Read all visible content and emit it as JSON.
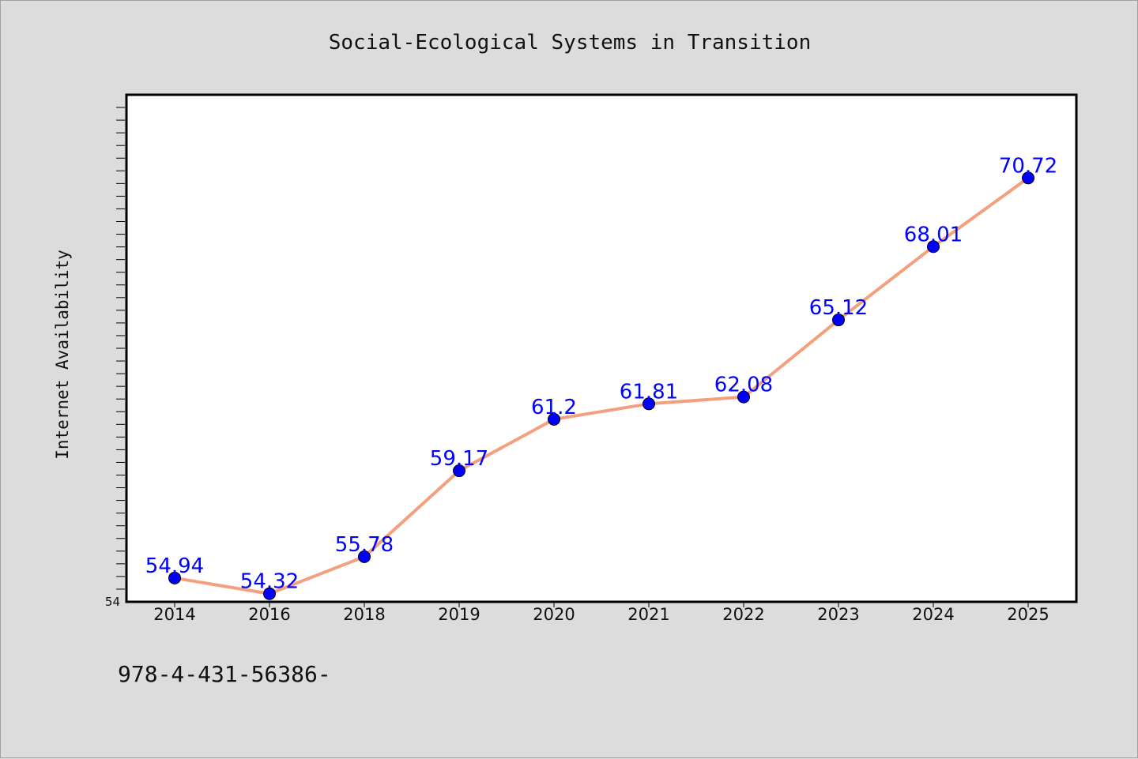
{
  "chart_data": {
    "type": "line",
    "title": "Social-Ecological Systems in Transition",
    "xlabel": "",
    "ylabel": "Internet Availability",
    "categories": [
      "2014",
      "2016",
      "2018",
      "2019",
      "2020",
      "2021",
      "2022",
      "2023",
      "2024",
      "2025"
    ],
    "series": [
      {
        "values": [
          54.94,
          54.32,
          55.78,
          59.17,
          61.2,
          61.81,
          62.08,
          65.12,
          68.01,
          70.72
        ]
      }
    ],
    "ylim": [
      54,
      74
    ],
    "y_tick_labels": [
      "54"
    ],
    "grid": false,
    "legend": "none",
    "data_labels": true,
    "colors": {
      "line": "#f4a07f",
      "marker": "#0000ff",
      "label": "#0000ff",
      "background": "#dcdcdc",
      "plot_area": "#ffffff"
    }
  },
  "footer_text": "978-4-431-56386-"
}
